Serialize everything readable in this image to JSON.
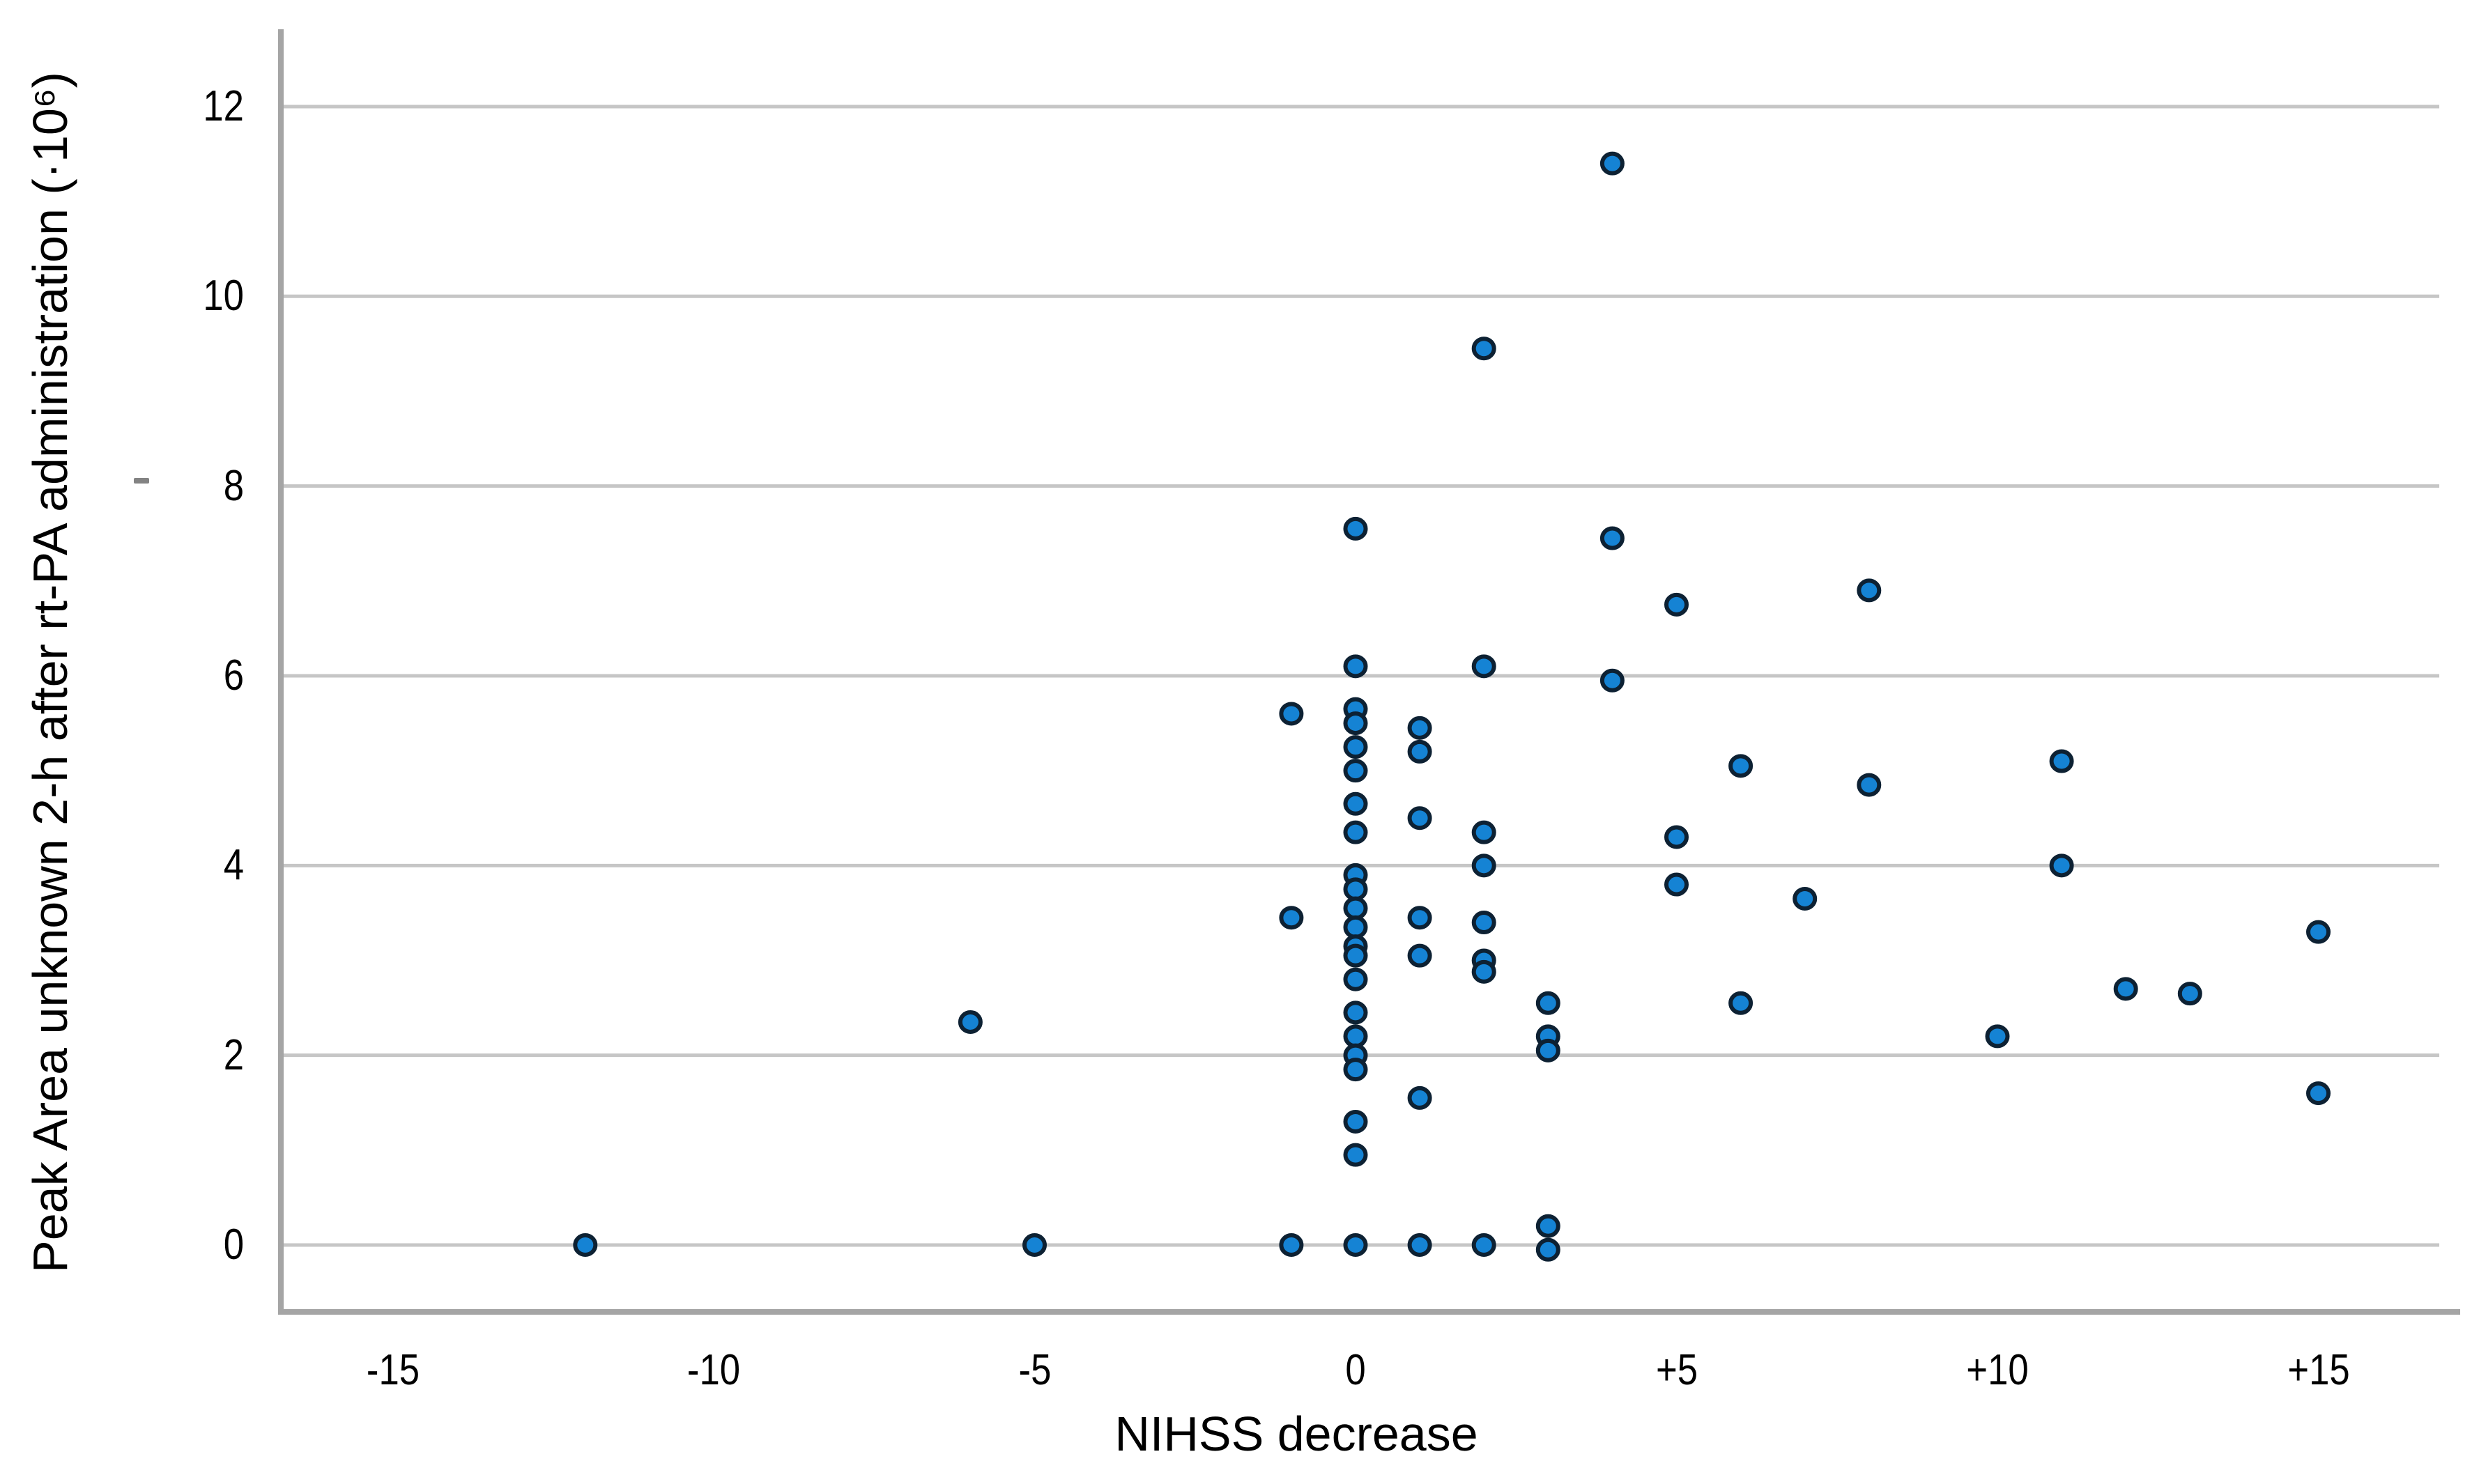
{
  "chart_data": {
    "type": "scatter",
    "title": "",
    "xlabel": "NIHSS decrease",
    "ylabel": "Peak Area unknown 2-h after rt-PA administration (·10⁶)",
    "x_ticks": [
      {
        "v": -15,
        "label": "-15"
      },
      {
        "v": -10,
        "label": "-10"
      },
      {
        "v": -5,
        "label": "-5"
      },
      {
        "v": 0,
        "label": "0"
      },
      {
        "v": 5,
        "label": "+5"
      },
      {
        "v": 10,
        "label": "+10"
      },
      {
        "v": 15,
        "label": "+15"
      }
    ],
    "y_ticks": [
      {
        "v": 0,
        "label": "0"
      },
      {
        "v": 2,
        "label": "2"
      },
      {
        "v": 4,
        "label": "4"
      },
      {
        "v": 6,
        "label": "6"
      },
      {
        "v": 8,
        "label": "8"
      },
      {
        "v": 10,
        "label": "10"
      },
      {
        "v": 12,
        "label": "12"
      }
    ],
    "xlim": [
      -16.7,
      17.0
    ],
    "ylim": [
      -0.73,
      12.82
    ],
    "grid": "horizontal-only",
    "legend_position": "none",
    "marker": {
      "shape": "circle",
      "fill": "#1583d4",
      "stroke": "#0d2133"
    },
    "colors": {
      "gridline": "#c6c6c6",
      "axis_line": "#a5a5a5",
      "text": "#000000",
      "background": "#ffffff"
    },
    "points": [
      [
        -12,
        0
      ],
      [
        -6,
        2.35
      ],
      [
        -5,
        0
      ],
      [
        -1,
        5.6
      ],
      [
        -1,
        3.45
      ],
      [
        -1,
        0
      ],
      [
        0,
        7.55
      ],
      [
        0,
        6.1
      ],
      [
        0,
        5.65
      ],
      [
        0,
        5.5
      ],
      [
        0,
        5.25
      ],
      [
        0,
        5.0
      ],
      [
        0,
        4.65
      ],
      [
        0,
        4.35
      ],
      [
        0,
        3.9
      ],
      [
        0,
        3.75
      ],
      [
        0,
        3.55
      ],
      [
        0,
        3.35
      ],
      [
        0,
        3.15
      ],
      [
        0,
        3.05
      ],
      [
        0,
        2.8
      ],
      [
        0,
        2.45
      ],
      [
        0,
        2.2
      ],
      [
        0,
        2.0
      ],
      [
        0,
        1.85
      ],
      [
        0,
        1.3
      ],
      [
        0,
        0.95
      ],
      [
        0,
        0
      ],
      [
        1,
        5.45
      ],
      [
        1,
        5.2
      ],
      [
        1,
        4.5
      ],
      [
        1,
        3.45
      ],
      [
        1,
        3.05
      ],
      [
        1,
        1.55
      ],
      [
        1,
        0
      ],
      [
        2,
        9.45
      ],
      [
        2,
        6.1
      ],
      [
        2,
        4.35
      ],
      [
        2,
        4.0
      ],
      [
        2,
        3.4
      ],
      [
        2,
        3.0
      ],
      [
        2,
        2.88
      ],
      [
        2,
        0
      ],
      [
        3,
        2.55
      ],
      [
        3,
        2.2
      ],
      [
        3,
        2.05
      ],
      [
        3,
        0.2
      ],
      [
        3,
        -0.05
      ],
      [
        4,
        11.4
      ],
      [
        4,
        7.45
      ],
      [
        4,
        5.95
      ],
      [
        5,
        6.75
      ],
      [
        5,
        4.3
      ],
      [
        5,
        3.8
      ],
      [
        6,
        5.05
      ],
      [
        6,
        2.55
      ],
      [
        7,
        3.65
      ],
      [
        8,
        6.9
      ],
      [
        8,
        4.85
      ],
      [
        10,
        2.2
      ],
      [
        11,
        5.1
      ],
      [
        11,
        4.0
      ],
      [
        12,
        2.7
      ],
      [
        13,
        2.65
      ],
      [
        15,
        3.3
      ],
      [
        15,
        1.6
      ]
    ]
  }
}
